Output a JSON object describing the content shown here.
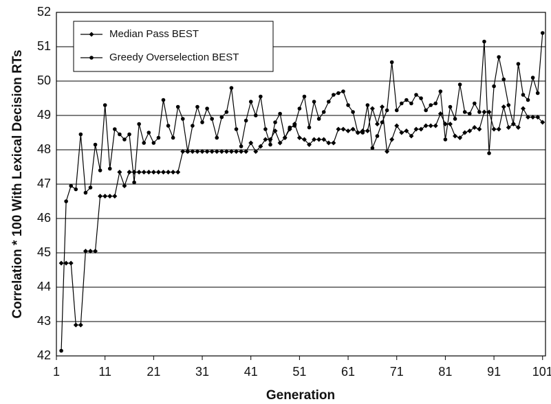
{
  "chart_data": {
    "type": "line",
    "x_label": "Generation",
    "y_label": "Correlation * 100 With Lexical Decision RTs",
    "x": [
      2,
      3,
      4,
      5,
      6,
      7,
      8,
      9,
      10,
      11,
      12,
      13,
      14,
      15,
      16,
      17,
      18,
      19,
      20,
      21,
      22,
      23,
      24,
      25,
      26,
      27,
      28,
      29,
      30,
      31,
      32,
      33,
      34,
      35,
      36,
      37,
      38,
      39,
      40,
      41,
      42,
      43,
      44,
      45,
      46,
      47,
      48,
      49,
      50,
      51,
      52,
      53,
      54,
      55,
      56,
      57,
      58,
      59,
      60,
      61,
      62,
      63,
      64,
      65,
      66,
      67,
      68,
      69,
      70,
      71,
      72,
      73,
      74,
      75,
      76,
      77,
      78,
      79,
      80,
      81,
      82,
      83,
      84,
      85,
      86,
      87,
      88,
      89,
      90,
      91,
      92,
      93,
      94,
      95,
      96,
      97,
      98,
      99,
      100,
      101
    ],
    "series": [
      {
        "name": "Median Pass BEST",
        "color": "#000000",
        "marker": "diamond",
        "values": [
          44.7,
          44.7,
          44.7,
          42.9,
          42.9,
          45.05,
          45.05,
          45.05,
          46.65,
          46.65,
          46.65,
          46.65,
          47.35,
          46.95,
          47.35,
          47.35,
          47.35,
          47.35,
          47.35,
          47.35,
          47.35,
          47.35,
          47.35,
          47.35,
          47.35,
          47.95,
          47.95,
          47.95,
          47.95,
          47.95,
          47.95,
          47.95,
          47.95,
          47.95,
          47.95,
          47.95,
          47.95,
          47.95,
          47.95,
          48.2,
          47.95,
          48.1,
          48.3,
          48.3,
          48.55,
          48.2,
          48.35,
          48.6,
          48.75,
          48.35,
          48.3,
          48.15,
          48.3,
          48.3,
          48.3,
          48.2,
          48.2,
          48.6,
          48.6,
          48.55,
          48.6,
          48.5,
          48.55,
          48.55,
          49.2,
          48.75,
          49.25,
          47.95,
          48.3,
          48.7,
          48.5,
          48.55,
          48.4,
          48.6,
          48.6,
          48.7,
          48.7,
          48.7,
          49.05,
          48.75,
          48.75,
          48.4,
          48.35,
          48.5,
          48.55,
          48.65,
          48.6,
          49.1,
          49.1,
          48.6,
          48.6,
          49.25,
          48.65,
          48.75,
          48.65,
          49.2,
          48.95,
          48.95,
          48.95,
          48.8
        ]
      },
      {
        "name": "Greedy Overselection BEST",
        "color": "#000000",
        "marker": "circle",
        "values": [
          42.15,
          46.5,
          46.95,
          46.85,
          48.45,
          46.75,
          46.9,
          48.15,
          47.4,
          49.3,
          47.45,
          48.6,
          48.45,
          48.3,
          48.45,
          47.05,
          48.75,
          48.2,
          48.5,
          48.2,
          48.35,
          49.45,
          48.7,
          48.35,
          49.25,
          48.9,
          47.95,
          48.7,
          49.25,
          48.8,
          49.2,
          48.9,
          48.35,
          48.95,
          49.1,
          49.8,
          48.6,
          48.1,
          48.85,
          49.4,
          49.0,
          49.55,
          48.6,
          48.15,
          48.8,
          49.05,
          48.35,
          48.65,
          48.7,
          49.2,
          49.55,
          48.65,
          49.4,
          48.9,
          49.1,
          49.4,
          49.6,
          49.65,
          49.7,
          49.3,
          49.1,
          48.5,
          48.5,
          49.3,
          48.05,
          48.4,
          48.8,
          49.15,
          50.55,
          49.15,
          49.35,
          49.45,
          49.35,
          49.6,
          49.5,
          49.15,
          49.3,
          49.35,
          49.7,
          48.3,
          49.25,
          48.9,
          49.9,
          49.1,
          49.05,
          49.35,
          49.1,
          51.15,
          47.9,
          49.85,
          50.7,
          50.05,
          49.3,
          48.75,
          50.5,
          49.6,
          49.45,
          50.1,
          49.65,
          51.4
        ]
      }
    ],
    "xlim": [
      1,
      101.6
    ],
    "xticks": [
      1,
      11,
      21,
      31,
      41,
      51,
      61,
      71,
      81,
      91,
      101
    ],
    "ylim": [
      42,
      52
    ],
    "yticks": [
      42,
      43,
      44,
      45,
      46,
      47,
      48,
      49,
      50,
      51,
      52
    ],
    "grid": true,
    "legend": "upper left"
  }
}
